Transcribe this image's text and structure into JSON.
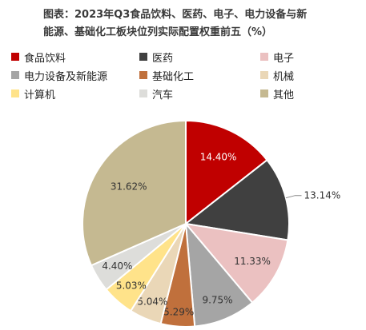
{
  "chart_data": {
    "type": "pie",
    "title_lines": [
      "图表：2023年Q3食品饮料、医药、电子、电力设备与新",
      "能源、基础化工板块位列实际配置权重前五（%）"
    ],
    "legend_position": "top",
    "slices": [
      {
        "label": "食品饮料",
        "value": 14.4,
        "value_label": "14.40%",
        "color": "#C00000"
      },
      {
        "label": "医药",
        "value": 13.14,
        "value_label": "13.14%",
        "color": "#404040"
      },
      {
        "label": "电子",
        "value": 11.33,
        "value_label": "11.33%",
        "color": "#EBC1C1"
      },
      {
        "label": "电力设备及新能源",
        "value": 9.75,
        "value_label": "9.75%",
        "color": "#A5A5A5"
      },
      {
        "label": "基础化工",
        "value": 5.29,
        "value_label": "5.29%",
        "color": "#C0703C"
      },
      {
        "label": "机械",
        "value": 5.04,
        "value_label": "5.04%",
        "color": "#EAD7B7"
      },
      {
        "label": "计算机",
        "value": 5.03,
        "value_label": "5.03%",
        "color": "#FFE38A"
      },
      {
        "label": "汽车",
        "value": 4.4,
        "value_label": "4.40%",
        "color": "#DDDDDA"
      },
      {
        "label": "其他",
        "value": 31.62,
        "value_label": "31.62%",
        "color": "#C5B991"
      }
    ]
  }
}
